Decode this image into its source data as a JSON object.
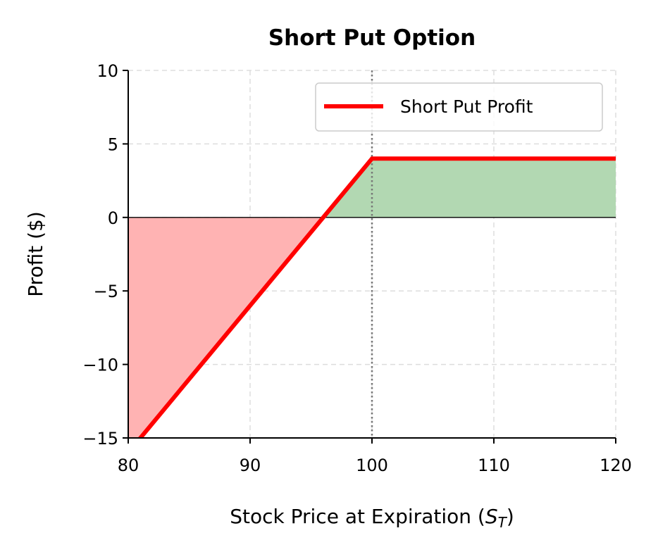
{
  "chart_data": {
    "type": "line",
    "title": "Short Put Option",
    "xlabel": "Stock Price at Expiration",
    "xlabel_var": "S",
    "xlabel_sub": "T",
    "ylabel": "Profit ($)",
    "xlim": [
      80,
      120
    ],
    "ylim": [
      -15,
      10
    ],
    "x_ticks": [
      80,
      90,
      100,
      110,
      120
    ],
    "y_ticks": [
      10,
      5,
      0,
      -5,
      -10,
      -15
    ],
    "y_tick_labels": [
      "10",
      "5",
      "0",
      "−5",
      "−10",
      "−15"
    ],
    "grid": true,
    "legend_position": "top-right",
    "strike_line_x": 100,
    "series": [
      {
        "name": "Short Put Profit",
        "color": "#ff0000",
        "x": [
          80,
          96,
          100,
          120
        ],
        "y": [
          -16,
          0,
          4,
          4
        ]
      }
    ],
    "fill_colors": {
      "profit": "#b2d8b2",
      "loss": "#ffb3b3"
    }
  }
}
